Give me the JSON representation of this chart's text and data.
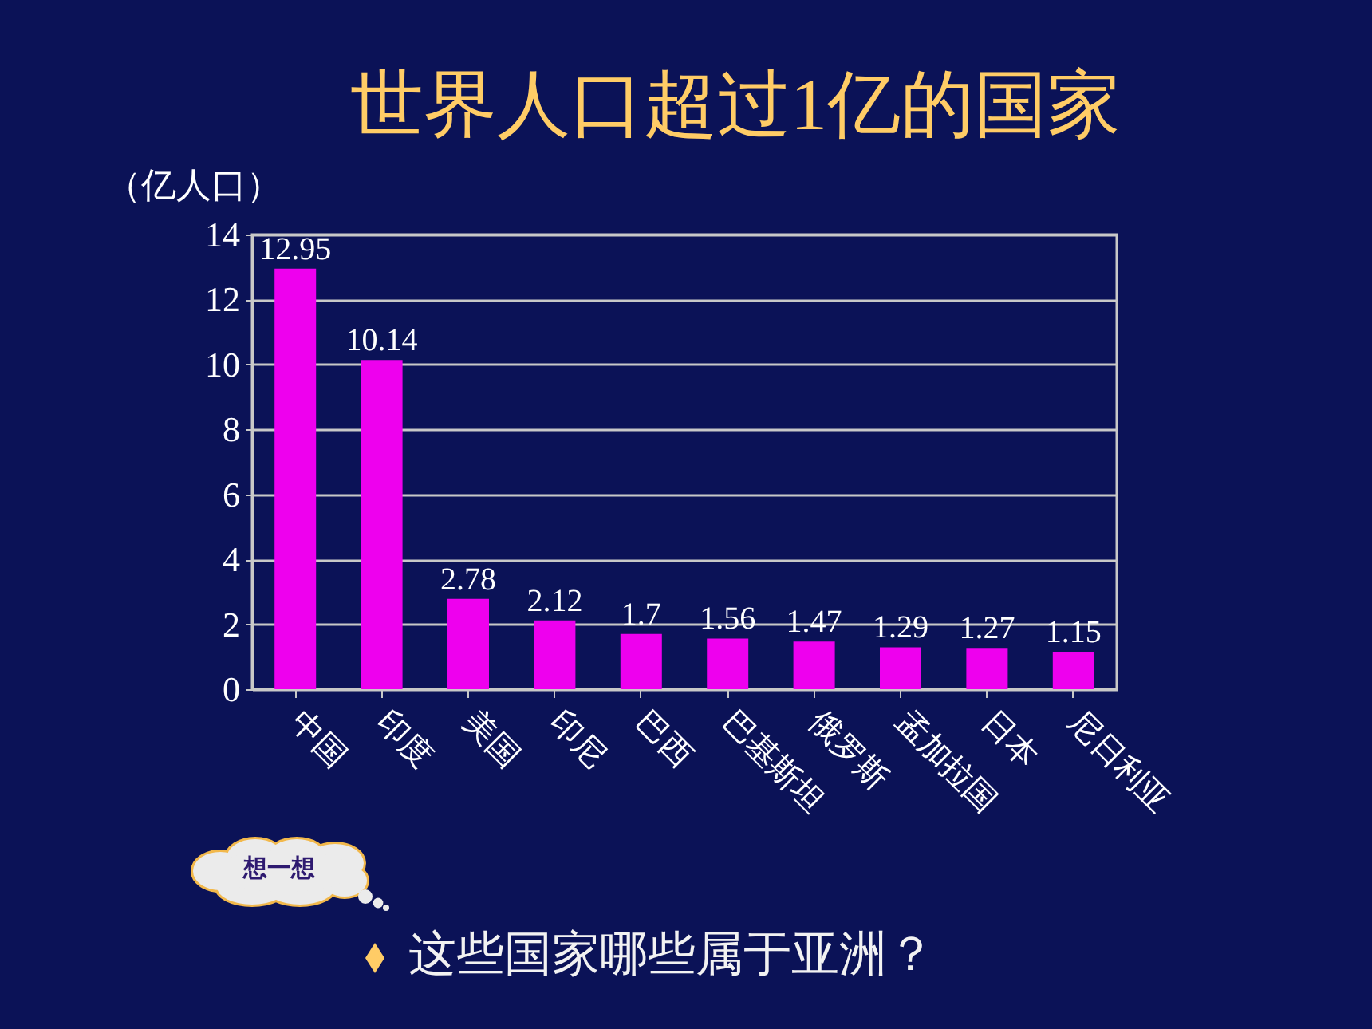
{
  "chart_data": {
    "type": "bar",
    "title": "世界人口超过1亿的国家",
    "ylabel": "（亿人口）",
    "categories": [
      "中国",
      "印度",
      "美国",
      "印尼",
      "巴西",
      "巴基斯坦",
      "俄罗斯",
      "孟加拉国",
      "日本",
      "尼日利亚"
    ],
    "values": [
      12.95,
      10.14,
      2.78,
      2.12,
      1.7,
      1.56,
      1.47,
      1.29,
      1.27,
      1.15
    ],
    "color": "#ee00ee",
    "ylim": [
      0,
      14
    ],
    "yticks": [
      0,
      2,
      4,
      6,
      8,
      10,
      12,
      14
    ],
    "grid": "y",
    "data_labels": true,
    "annotations": [
      "想一想",
      "这些国家哪些属于亚洲？"
    ]
  }
}
